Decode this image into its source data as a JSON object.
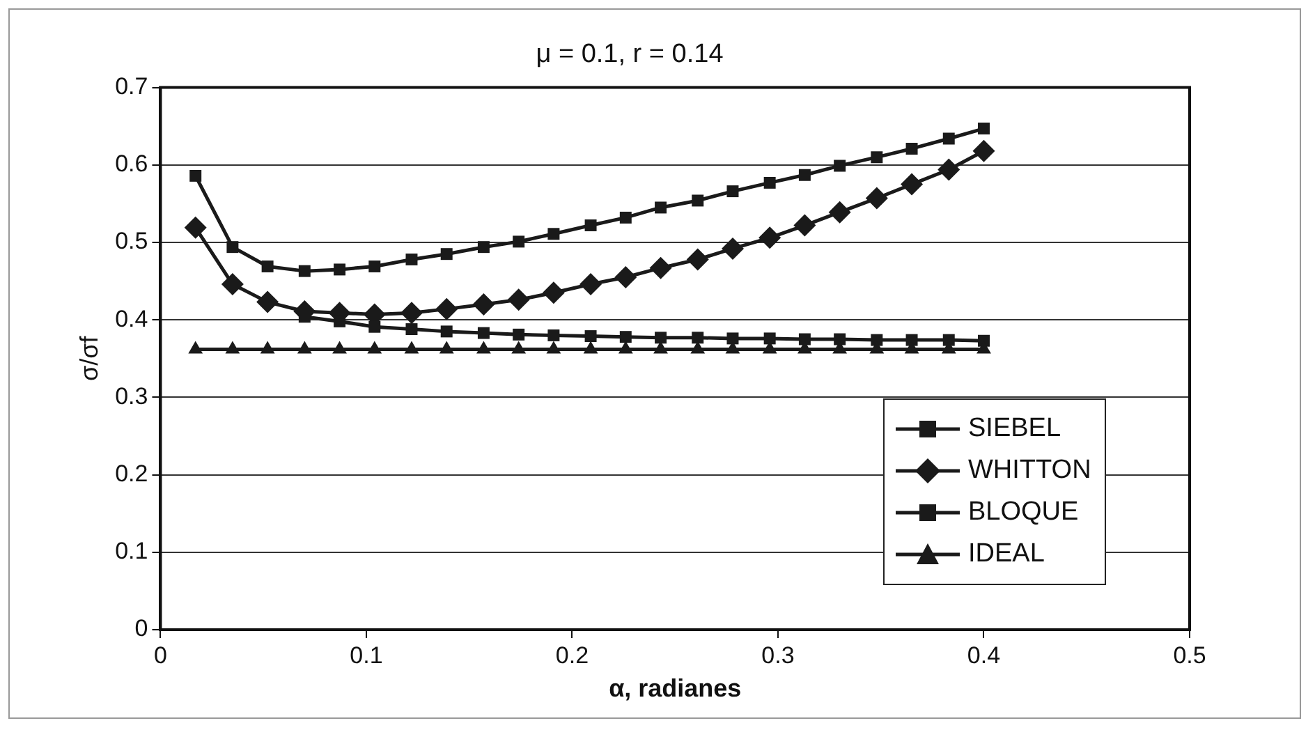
{
  "chart_data": {
    "type": "line",
    "title": "μ = 0.1, r = 0.14",
    "xlabel": "α, radianes",
    "ylabel": "σ/σf",
    "x": [
      0.017,
      0.035,
      0.052,
      0.07,
      0.087,
      0.104,
      0.122,
      0.139,
      0.157,
      0.174,
      0.191,
      0.209,
      0.226,
      0.243,
      0.261,
      0.278,
      0.296,
      0.313,
      0.33,
      0.348,
      0.365,
      0.383,
      0.4
    ],
    "series": [
      {
        "name": "SIEBEL",
        "color": "#1a1a1a",
        "marker": "square",
        "values": [
          0.586,
          0.494,
          0.469,
          0.463,
          0.465,
          0.469,
          0.478,
          0.485,
          0.494,
          0.501,
          0.511,
          0.522,
          0.532,
          0.545,
          0.554,
          0.566,
          0.577,
          0.587,
          0.599,
          0.61,
          0.621,
          0.634,
          0.647
        ]
      },
      {
        "name": "WHITTON",
        "color": "#1a1a1a",
        "marker": "diamond",
        "values": [
          0.519,
          0.446,
          0.423,
          0.411,
          0.409,
          0.407,
          0.409,
          0.414,
          0.42,
          0.426,
          0.435,
          0.446,
          0.455,
          0.467,
          0.478,
          0.492,
          0.506,
          0.522,
          0.539,
          0.557,
          0.575,
          0.594,
          0.618
        ]
      },
      {
        "name": "BLOQUE",
        "color": "#1a1a1a",
        "marker": "square",
        "values": [
          null,
          null,
          null,
          0.404,
          0.398,
          0.391,
          0.388,
          0.385,
          0.383,
          0.381,
          0.38,
          0.379,
          0.378,
          0.377,
          0.377,
          0.376,
          0.376,
          0.375,
          0.375,
          0.374,
          0.374,
          0.374,
          0.373
        ]
      },
      {
        "name": "IDEAL",
        "color": "#1a1a1a",
        "marker": "triangle",
        "values": [
          0.362,
          0.362,
          0.362,
          0.362,
          0.362,
          0.362,
          0.362,
          0.362,
          0.362,
          0.362,
          0.362,
          0.362,
          0.362,
          0.362,
          0.362,
          0.362,
          0.362,
          0.362,
          0.362,
          0.362,
          0.362,
          0.362,
          0.362
        ]
      }
    ],
    "xlim": [
      0,
      0.5
    ],
    "xticks": [
      0,
      0.1,
      0.2,
      0.3,
      0.4,
      0.5
    ],
    "ylim": [
      0,
      0.7
    ],
    "yticks": [
      0,
      0.1,
      0.2,
      0.3,
      0.4,
      0.5,
      0.6,
      0.7
    ],
    "grid": "y",
    "legend": "bottom right",
    "line_style": "solid"
  }
}
